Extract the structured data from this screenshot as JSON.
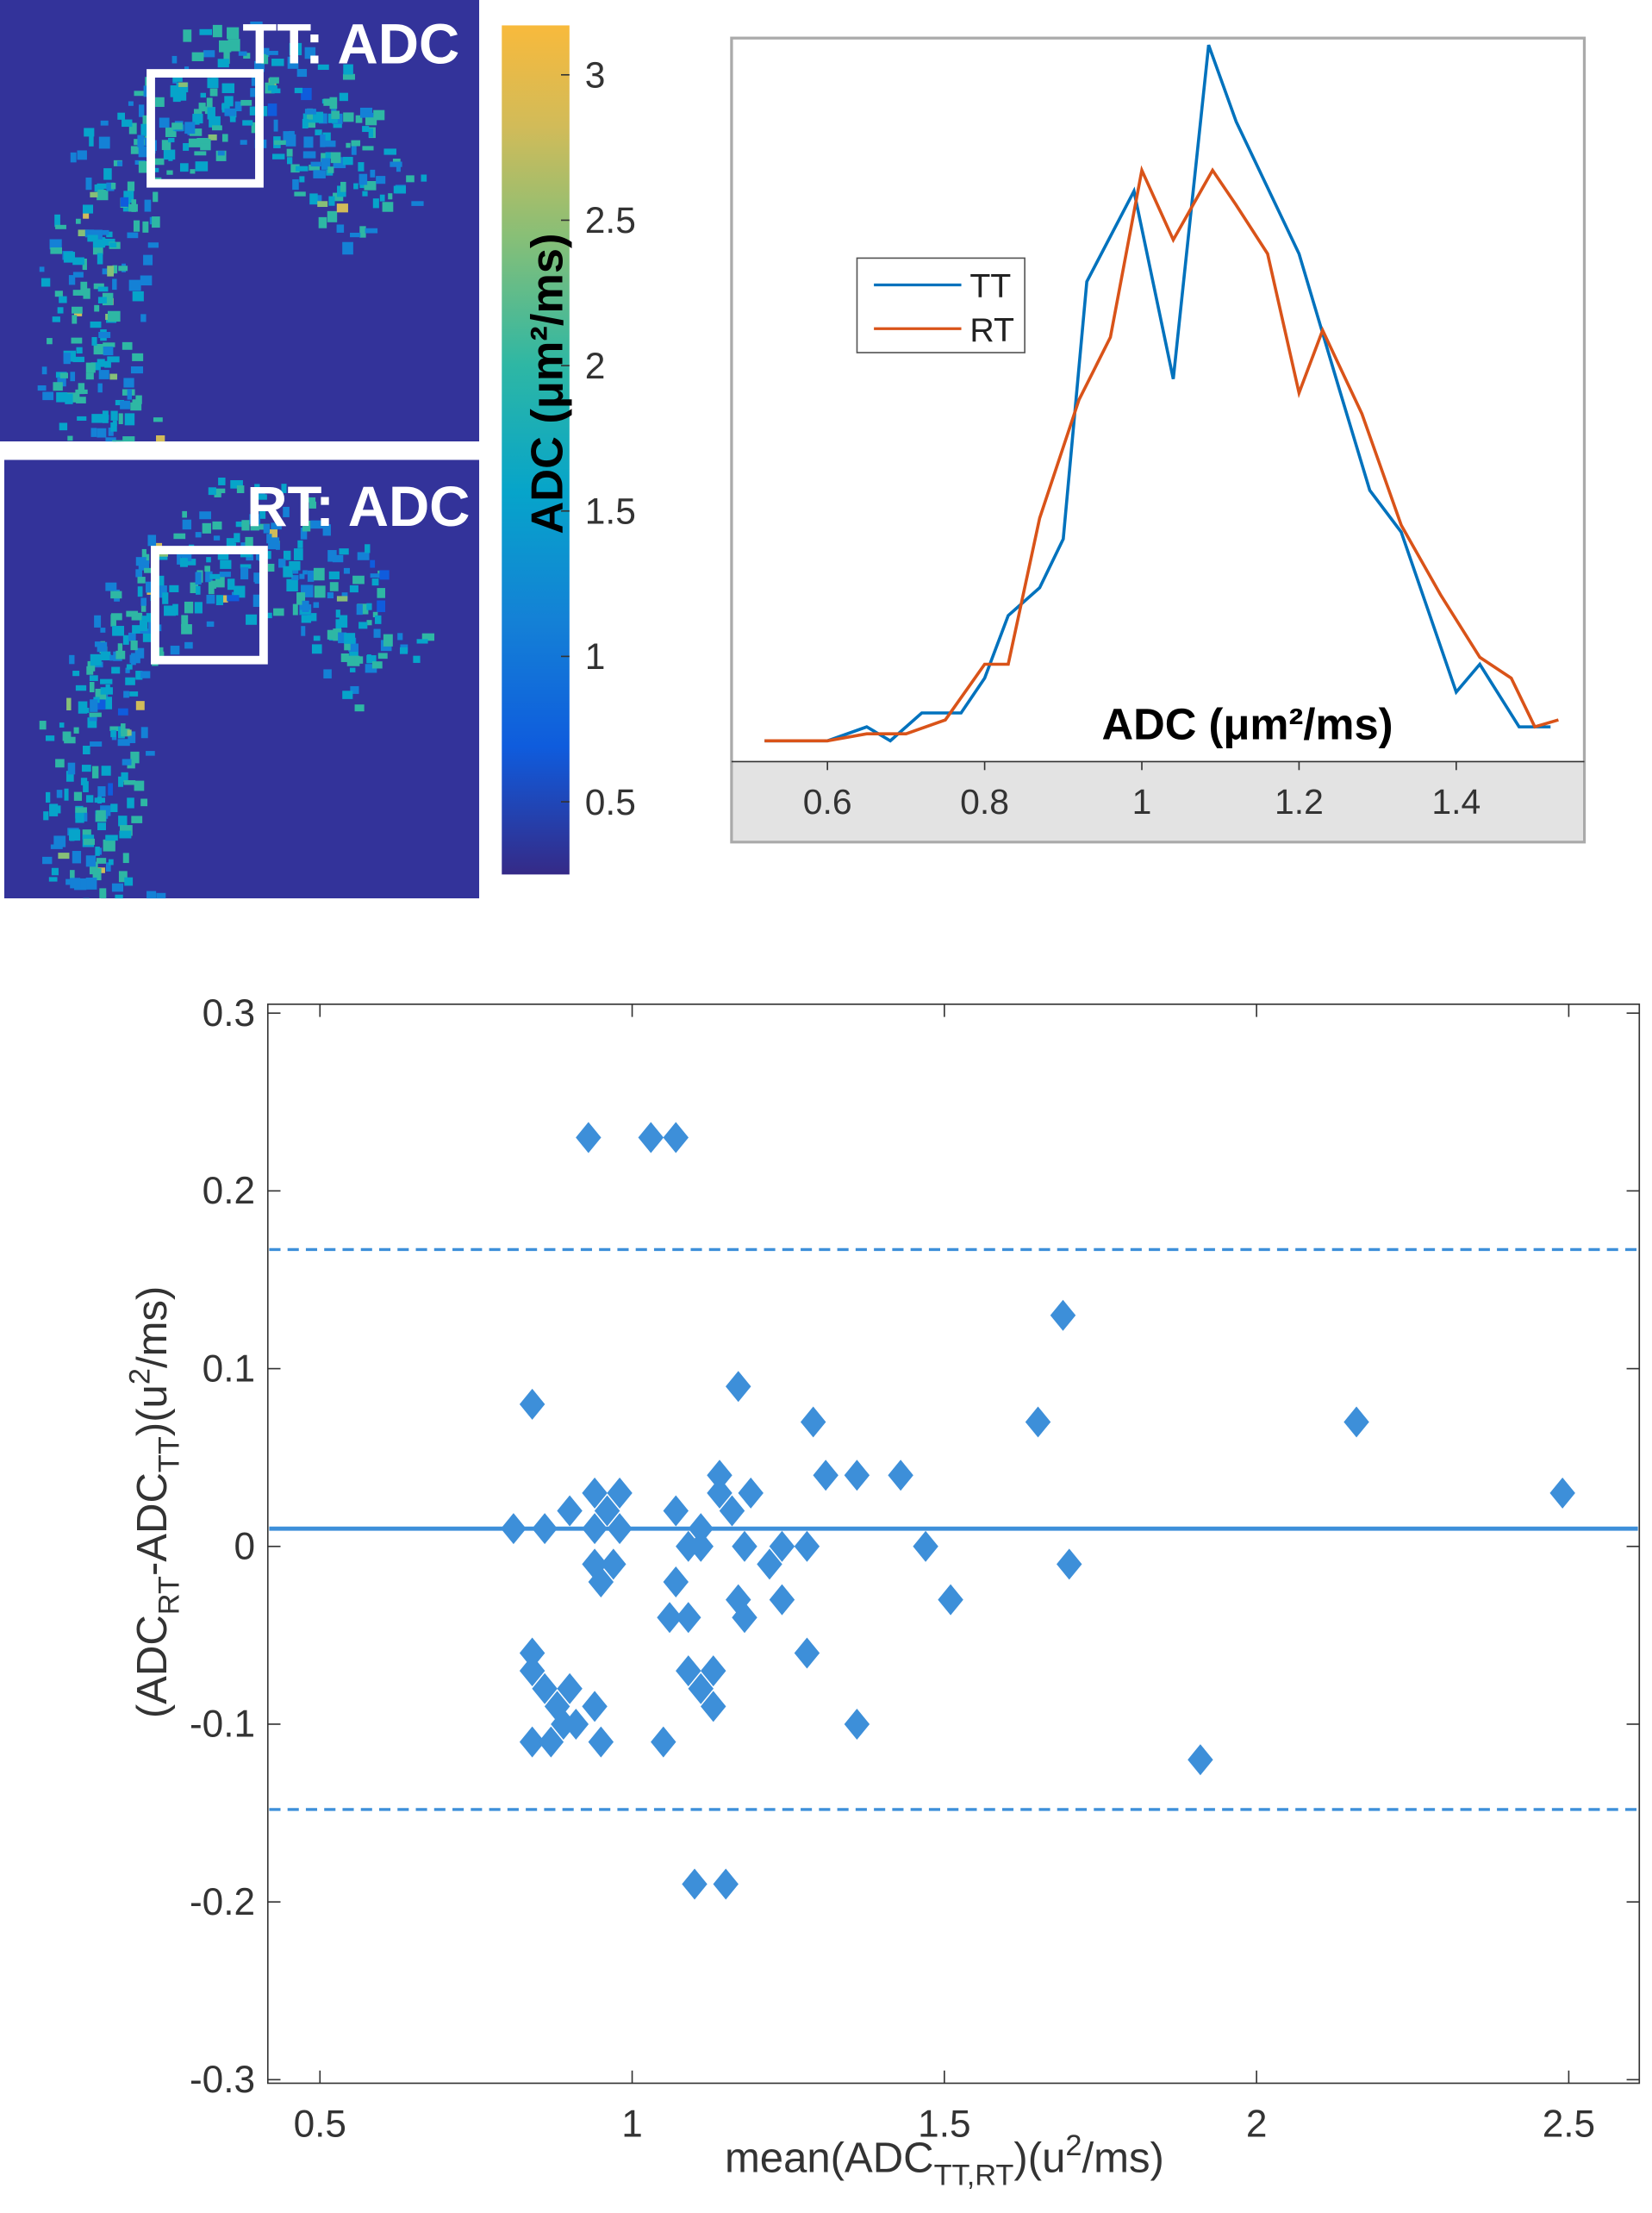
{
  "images": [
    {
      "label": "TT: ADC"
    },
    {
      "label": "RT: ADC"
    }
  ],
  "chart_data": [
    {
      "type": "colorbar",
      "label": "ADC (μm²/ms)",
      "ylim": [
        0.25,
        3.17
      ],
      "yticks": [
        0.5,
        1,
        1.5,
        2,
        2.5,
        3
      ]
    },
    {
      "type": "line",
      "xlabel": "ADC (μm²/ms)",
      "xlim": [
        0.478,
        1.563
      ],
      "xticks": [
        0.6,
        0.8,
        1,
        1.2,
        1.4
      ],
      "ylim": [
        -0.03,
        1.01
      ],
      "series": [
        {
          "name": "TT",
          "color": "#0072bd",
          "x": [
            0.52,
            0.6,
            0.65,
            0.68,
            0.72,
            0.77,
            0.8,
            0.83,
            0.87,
            0.9,
            0.93,
            0.99,
            1.04,
            1.085,
            1.12,
            1.2,
            1.25,
            1.29,
            1.33,
            1.4,
            1.43,
            1.48,
            1.52
          ],
          "values": [
            0,
            0,
            0.02,
            0,
            0.04,
            0.04,
            0.09,
            0.18,
            0.22,
            0.29,
            0.66,
            0.79,
            0.52,
            1.0,
            0.89,
            0.7,
            0.51,
            0.36,
            0.3,
            0.07,
            0.11,
            0.02,
            0.02
          ]
        },
        {
          "name": "RT",
          "color": "#d95319",
          "x": [
            0.52,
            0.6,
            0.65,
            0.7,
            0.75,
            0.8,
            0.83,
            0.87,
            0.92,
            0.96,
            1.0,
            1.04,
            1.09,
            1.12,
            1.16,
            1.2,
            1.23,
            1.28,
            1.33,
            1.38,
            1.43,
            1.47,
            1.5,
            1.53
          ],
          "values": [
            0,
            0,
            0.01,
            0.01,
            0.03,
            0.11,
            0.11,
            0.32,
            0.49,
            0.58,
            0.82,
            0.72,
            0.82,
            0.77,
            0.7,
            0.5,
            0.59,
            0.47,
            0.31,
            0.21,
            0.12,
            0.09,
            0.02,
            0.03
          ]
        }
      ]
    },
    {
      "type": "scatter",
      "color": "#3d8fd9",
      "xlabel": [
        {
          "text": "mean(ADC"
        },
        {
          "text": "TT,RT",
          "shift": "sub"
        },
        {
          "text": ")(u"
        },
        {
          "text": "2",
          "shift": "sup"
        },
        {
          "text": "/ms)"
        }
      ],
      "ylabel": [
        {
          "text": "(ADC"
        },
        {
          "text": "RT",
          "shift": "sub"
        },
        {
          "text": "-ADC"
        },
        {
          "text": "TT",
          "shift": "sub"
        },
        {
          "text": ")(u"
        },
        {
          "text": "2",
          "shift": "sup"
        },
        {
          "text": "/ms)"
        }
      ],
      "xlim": [
        0.4165,
        2.613
      ],
      "ylim": [
        -0.302,
        0.305
      ],
      "xticks": [
        0.5,
        1,
        1.5,
        2,
        2.5
      ],
      "yticks": [
        -0.3,
        -0.2,
        -0.1,
        0,
        0.1,
        0.2,
        0.3
      ],
      "lines": [
        {
          "value": 0.01,
          "style": "solid"
        },
        {
          "value": 0.167,
          "style": "dashed"
        },
        {
          "value": -0.148,
          "style": "dashed"
        }
      ],
      "x": [
        0.93,
        1.03,
        1.07,
        0.84,
        0.81,
        0.86,
        0.9,
        0.94,
        0.98,
        0.96,
        0.94,
        0.98,
        0.94,
        0.97,
        0.95,
        1.07,
        1.17,
        1.14,
        1.14,
        1.16,
        1.19,
        1.11,
        1.09,
        1.11,
        1.18,
        1.24,
        1.28,
        1.22,
        1.29,
        1.31,
        1.36,
        1.43,
        1.47,
        1.51,
        1.07,
        1.06,
        1.09,
        1.17,
        1.18,
        1.24,
        1.28,
        1.09,
        1.11,
        1.13,
        1.13,
        1.05,
        1.36,
        0.84,
        0.84,
        0.86,
        0.88,
        0.9,
        0.89,
        0.91,
        0.84,
        0.87,
        0.94,
        0.95,
        1.1,
        1.15,
        1.65,
        1.69,
        1.7,
        1.91,
        2.16,
        2.49
      ],
      "values": [
        0.23,
        0.23,
        0.23,
        0.08,
        0.01,
        0.01,
        0.02,
        0.03,
        0.03,
        0.02,
        0.01,
        0.01,
        -0.01,
        -0.01,
        -0.02,
        0.02,
        0.09,
        0.04,
        0.03,
        0.02,
        0.03,
        0.01,
        0,
        0,
        0,
        0,
        0,
        -0.01,
        0.07,
        0.04,
        0.04,
        0.04,
        0,
        -0.03,
        -0.02,
        -0.04,
        -0.04,
        -0.03,
        -0.04,
        -0.03,
        -0.06,
        -0.07,
        -0.08,
        -0.07,
        -0.09,
        -0.11,
        -0.1,
        -0.06,
        -0.07,
        -0.08,
        -0.09,
        -0.08,
        -0.1,
        -0.1,
        -0.11,
        -0.11,
        -0.09,
        -0.11,
        -0.19,
        -0.19,
        0.07,
        0.13,
        -0.01,
        -0.12,
        0.07,
        0.03
      ]
    }
  ]
}
